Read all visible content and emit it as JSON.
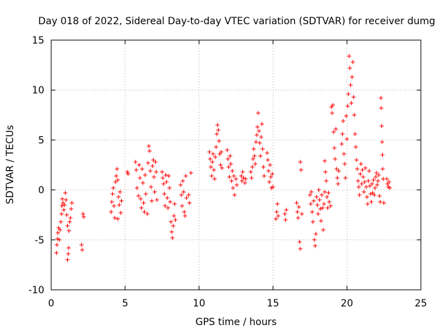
{
  "chart_data": {
    "type": "scatter",
    "title": "Day 018 of 2022, Sidereal Day-to-day VTEC variation (SDTVAR) for receiver dumg",
    "xlabel": "GPS time / hours",
    "ylabel": "SDTVAR / TECUs",
    "xlim": [
      0,
      25
    ],
    "ylim": [
      -10,
      15
    ],
    "xticks": [
      0,
      5,
      10,
      15,
      20,
      25
    ],
    "yticks": [
      -10,
      -5,
      0,
      5,
      10,
      15
    ],
    "grid": true,
    "marker": "+",
    "color": "#ff0000",
    "series": [
      {
        "name": "SDTVAR",
        "points": [
          [
            0.35,
            -6.3
          ],
          [
            0.38,
            -5.5
          ],
          [
            0.42,
            -4.9
          ],
          [
            0.45,
            -4.3
          ],
          [
            0.5,
            -3.8
          ],
          [
            0.55,
            -5.0
          ],
          [
            0.6,
            -4.0
          ],
          [
            0.65,
            -3.2
          ],
          [
            0.7,
            -2.4
          ],
          [
            0.72,
            -1.6
          ],
          [
            0.75,
            -0.9
          ],
          [
            0.8,
            -1.3
          ],
          [
            0.85,
            -2.0
          ],
          [
            0.9,
            -1.5
          ],
          [
            0.95,
            -0.3
          ],
          [
            1.0,
            -1.0
          ],
          [
            1.05,
            -2.5
          ],
          [
            1.1,
            -3.6
          ],
          [
            1.1,
            -7.0
          ],
          [
            1.15,
            -6.4
          ],
          [
            1.18,
            -5.8
          ],
          [
            1.2,
            -4.1
          ],
          [
            1.25,
            -3.2
          ],
          [
            1.3,
            -2.8
          ],
          [
            1.35,
            -1.9
          ],
          [
            1.4,
            -1.3
          ],
          [
            2.05,
            -5.5
          ],
          [
            2.1,
            -6.0
          ],
          [
            2.15,
            -2.4
          ],
          [
            2.2,
            -2.7
          ],
          [
            4.05,
            -2.2
          ],
          [
            4.1,
            -1.2
          ],
          [
            4.15,
            -0.4
          ],
          [
            4.2,
            0.2
          ],
          [
            4.25,
            -1.6
          ],
          [
            4.3,
            -2.8
          ],
          [
            4.35,
            0.8
          ],
          [
            4.4,
            1.4
          ],
          [
            4.45,
            2.1
          ],
          [
            4.5,
            1.0
          ],
          [
            4.5,
            -2.9
          ],
          [
            4.55,
            -0.7
          ],
          [
            4.6,
            -1.5
          ],
          [
            4.65,
            -0.2
          ],
          [
            4.7,
            -2.3
          ],
          [
            4.75,
            -1.1
          ],
          [
            5.15,
            1.8
          ],
          [
            5.2,
            1.6
          ],
          [
            5.7,
            2.8
          ],
          [
            5.75,
            2.0
          ],
          [
            5.8,
            0.2
          ],
          [
            5.9,
            -0.6
          ],
          [
            5.95,
            2.5
          ],
          [
            6.0,
            1.2
          ],
          [
            6.05,
            -0.9
          ],
          [
            6.1,
            -1.8
          ],
          [
            6.15,
            2.1
          ],
          [
            6.2,
            0.7
          ],
          [
            6.25,
            -1.3
          ],
          [
            6.3,
            -2.2
          ],
          [
            6.35,
            1.5
          ],
          [
            6.4,
            -0.4
          ],
          [
            6.5,
            -2.4
          ],
          [
            6.55,
            2.7
          ],
          [
            6.6,
            4.4
          ],
          [
            6.65,
            3.9
          ],
          [
            6.7,
            1.9
          ],
          [
            6.75,
            0.3
          ],
          [
            6.8,
            -1.1
          ],
          [
            6.85,
            2.4
          ],
          [
            6.9,
            3.0
          ],
          [
            6.95,
            1.3
          ],
          [
            7.0,
            -0.2
          ],
          [
            7.05,
            2.8
          ],
          [
            7.1,
            1.8
          ],
          [
            7.15,
            -1.0
          ],
          [
            7.5,
            1.8
          ],
          [
            7.55,
            1.2
          ],
          [
            7.6,
            0.6
          ],
          [
            7.65,
            -0.4
          ],
          [
            7.7,
            -1.6
          ],
          [
            7.75,
            1.5
          ],
          [
            7.8,
            0.8
          ],
          [
            7.85,
            -0.8
          ],
          [
            7.9,
            -1.8
          ],
          [
            7.95,
            1.4
          ],
          [
            8.0,
            0.2
          ],
          [
            8.05,
            -1.2
          ],
          [
            8.1,
            -3.2
          ],
          [
            8.15,
            -4.2
          ],
          [
            8.2,
            -4.8
          ],
          [
            8.25,
            -3.6
          ],
          [
            8.3,
            -2.6
          ],
          [
            8.35,
            -1.4
          ],
          [
            8.4,
            -3.0
          ],
          [
            8.75,
            0.5
          ],
          [
            8.8,
            -0.5
          ],
          [
            8.85,
            -1.6
          ],
          [
            8.9,
            0.9
          ],
          [
            8.95,
            -0.2
          ],
          [
            9.0,
            -2.2
          ],
          [
            9.05,
            -2.6
          ],
          [
            9.1,
            1.4
          ],
          [
            9.15,
            -0.8
          ],
          [
            9.3,
            -0.5
          ],
          [
            9.35,
            -1.3
          ],
          [
            9.45,
            1.7
          ],
          [
            10.7,
            3.8
          ],
          [
            10.75,
            3.1
          ],
          [
            10.8,
            2.3
          ],
          [
            10.85,
            1.4
          ],
          [
            10.9,
            2.8
          ],
          [
            10.95,
            3.6
          ],
          [
            11.0,
            2.0
          ],
          [
            11.05,
            1.1
          ],
          [
            11.1,
            3.3
          ],
          [
            11.15,
            4.3
          ],
          [
            11.2,
            5.6
          ],
          [
            11.25,
            6.5
          ],
          [
            11.3,
            6.0
          ],
          [
            11.35,
            4.9
          ],
          [
            11.4,
            3.6
          ],
          [
            11.45,
            2.5
          ],
          [
            11.5,
            3.8
          ],
          [
            11.55,
            2.2
          ],
          [
            11.9,
            4.0
          ],
          [
            11.95,
            3.1
          ],
          [
            12.0,
            2.3
          ],
          [
            12.05,
            1.3
          ],
          [
            12.1,
            3.4
          ],
          [
            12.15,
            2.6
          ],
          [
            12.2,
            0.9
          ],
          [
            12.25,
            1.9
          ],
          [
            12.3,
            0.2
          ],
          [
            12.35,
            1.4
          ],
          [
            12.4,
            -0.5
          ],
          [
            12.5,
            1.1
          ],
          [
            12.55,
            0.5
          ],
          [
            12.85,
            1.4
          ],
          [
            12.9,
            0.9
          ],
          [
            12.95,
            1.8
          ],
          [
            13.0,
            1.2
          ],
          [
            13.1,
            0.7
          ],
          [
            13.15,
            1.1
          ],
          [
            13.5,
            1.8
          ],
          [
            13.55,
            1.2
          ],
          [
            13.6,
            2.3
          ],
          [
            13.65,
            3.1
          ],
          [
            13.7,
            4.1
          ],
          [
            13.75,
            3.4
          ],
          [
            13.8,
            2.6
          ],
          [
            13.85,
            4.8
          ],
          [
            13.9,
            5.5
          ],
          [
            13.95,
            6.3
          ],
          [
            14.0,
            7.7
          ],
          [
            14.05,
            5.9
          ],
          [
            14.1,
            4.7
          ],
          [
            14.15,
            3.4
          ],
          [
            14.2,
            5.3
          ],
          [
            14.25,
            6.6
          ],
          [
            14.3,
            4.1
          ],
          [
            14.35,
            2.3
          ],
          [
            14.4,
            1.4
          ],
          [
            14.6,
            3.7
          ],
          [
            14.65,
            3.0
          ],
          [
            14.7,
            1.9
          ],
          [
            14.75,
            0.8
          ],
          [
            14.8,
            2.5
          ],
          [
            14.85,
            1.3
          ],
          [
            14.9,
            0.2
          ],
          [
            14.95,
            1.6
          ],
          [
            15.0,
            0.3
          ],
          [
            15.2,
            -2.9
          ],
          [
            15.25,
            -2.2
          ],
          [
            15.3,
            -1.4
          ],
          [
            15.35,
            -2.6
          ],
          [
            15.8,
            -2.4
          ],
          [
            15.85,
            -3.0
          ],
          [
            15.9,
            -2.0
          ],
          [
            16.6,
            -1.3
          ],
          [
            16.65,
            -2.2
          ],
          [
            16.7,
            -2.8
          ],
          [
            16.75,
            -1.7
          ],
          [
            16.8,
            -5.2
          ],
          [
            16.85,
            -5.9
          ],
          [
            16.85,
            2.8
          ],
          [
            16.9,
            2.0
          ],
          [
            16.95,
            -2.4
          ],
          [
            17.5,
            -0.5
          ],
          [
            17.55,
            -1.4
          ],
          [
            17.6,
            -0.2
          ],
          [
            17.65,
            -2.2
          ],
          [
            17.7,
            -3.2
          ],
          [
            17.75,
            -1.1
          ],
          [
            17.8,
            -5.0
          ],
          [
            17.85,
            -5.6
          ],
          [
            17.9,
            -4.4
          ],
          [
            17.95,
            -0.7
          ],
          [
            18.0,
            -1.5
          ],
          [
            18.05,
            -2.4
          ],
          [
            18.1,
            0.0
          ],
          [
            18.15,
            -1.0
          ],
          [
            18.2,
            -1.9
          ],
          [
            18.25,
            -3.1
          ],
          [
            18.3,
            -0.5
          ],
          [
            18.35,
            -1.8
          ],
          [
            18.4,
            -4.0
          ],
          [
            18.45,
            -1.4
          ],
          [
            18.5,
            -0.2
          ],
          [
            18.5,
            2.9
          ],
          [
            18.55,
            1.8
          ],
          [
            18.6,
            0.9
          ],
          [
            18.65,
            -0.7
          ],
          [
            18.7,
            -1.8
          ],
          [
            18.75,
            -0.3
          ],
          [
            18.8,
            -1.2
          ],
          [
            18.9,
            -1.6
          ],
          [
            18.95,
            8.3
          ],
          [
            19.0,
            7.7
          ],
          [
            19.05,
            8.5
          ],
          [
            19.1,
            5.8
          ],
          [
            19.15,
            4.2
          ],
          [
            19.2,
            3.1
          ],
          [
            19.25,
            6.1
          ],
          [
            19.3,
            2.1
          ],
          [
            19.35,
            1.2
          ],
          [
            19.4,
            0.6
          ],
          [
            19.45,
            1.9
          ],
          [
            19.65,
            4.6
          ],
          [
            19.7,
            5.6
          ],
          [
            19.75,
            6.9
          ],
          [
            19.8,
            3.6
          ],
          [
            19.85,
            2.6
          ],
          [
            19.9,
            1.2
          ],
          [
            19.95,
            7.4
          ],
          [
            20.0,
            5.1
          ],
          [
            20.05,
            8.4
          ],
          [
            20.1,
            9.6
          ],
          [
            20.15,
            13.4
          ],
          [
            20.2,
            12.2
          ],
          [
            20.25,
            10.5
          ],
          [
            20.3,
            8.7
          ],
          [
            20.35,
            11.3
          ],
          [
            20.4,
            12.8
          ],
          [
            20.45,
            9.3
          ],
          [
            20.5,
            7.5
          ],
          [
            20.55,
            5.6
          ],
          [
            20.6,
            4.3
          ],
          [
            20.65,
            3.0
          ],
          [
            20.7,
            2.1
          ],
          [
            20.75,
            0.9
          ],
          [
            20.8,
            0.3
          ],
          [
            20.85,
            -0.5
          ],
          [
            20.9,
            1.6
          ],
          [
            20.95,
            2.6
          ],
          [
            21.0,
            0.6
          ],
          [
            21.05,
            2.0
          ],
          [
            21.1,
            1.3
          ],
          [
            21.15,
            -0.2
          ],
          [
            21.2,
            0.8
          ],
          [
            21.25,
            2.2
          ],
          [
            21.3,
            0.3
          ],
          [
            21.35,
            -0.7
          ],
          [
            21.4,
            -1.4
          ],
          [
            21.45,
            0.9
          ],
          [
            21.5,
            1.9
          ],
          [
            21.55,
            0.4
          ],
          [
            21.6,
            -0.4
          ],
          [
            21.65,
            -1.2
          ],
          [
            21.7,
            0.6
          ],
          [
            21.75,
            -0.3
          ],
          [
            21.8,
            1.0
          ],
          [
            21.85,
            -0.5
          ],
          [
            21.9,
            0.2
          ],
          [
            21.95,
            1.3
          ],
          [
            22.0,
            1.7
          ],
          [
            22.05,
            0.5
          ],
          [
            22.1,
            0.9
          ],
          [
            22.15,
            1.5
          ],
          [
            22.2,
            -0.6
          ],
          [
            22.25,
            -1.2
          ],
          [
            22.3,
            9.2
          ],
          [
            22.32,
            8.2
          ],
          [
            22.35,
            6.4
          ],
          [
            22.38,
            4.8
          ],
          [
            22.4,
            3.5
          ],
          [
            22.42,
            2.1
          ],
          [
            22.45,
            1.1
          ],
          [
            22.5,
            -1.3
          ],
          [
            22.7,
            1.1
          ],
          [
            22.75,
            0.6
          ],
          [
            22.8,
            0.3
          ],
          [
            22.85,
            0.8
          ],
          [
            22.9,
            0.2
          ]
        ]
      }
    ]
  }
}
